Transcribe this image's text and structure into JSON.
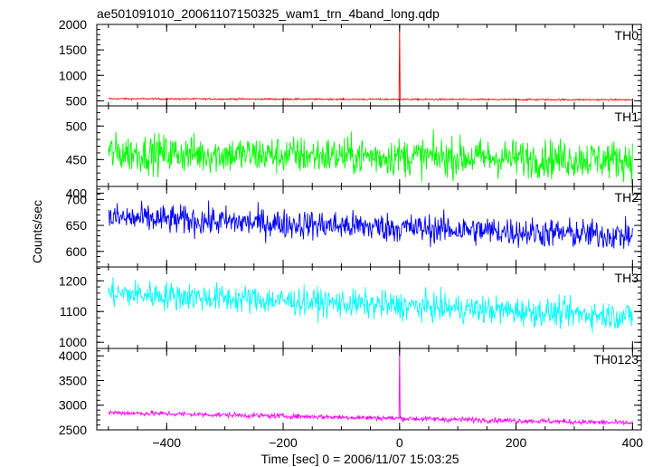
{
  "chart_data": {
    "type": "line",
    "title": "ae501091010_20061107150325_wam1_trn_4band_long.qdp",
    "xlabel": "Time [sec] 0 = 2006/11/07 15:03:25",
    "ylabel": "Counts/sec",
    "xlim": [
      -520,
      415
    ],
    "x_ticks": [
      -400,
      -200,
      0,
      200,
      400
    ],
    "x_tick_labels": [
      "−400",
      "−200",
      "0",
      "200",
      "400"
    ],
    "x_data_range": [
      -500,
      400
    ],
    "grid": false,
    "panels": [
      {
        "name": "TH0",
        "color": "#ff0000",
        "ylim": [
          400,
          2000
        ],
        "yticks": [
          500,
          1000,
          1500,
          2000
        ],
        "series_summary": {
          "start_mean": 540,
          "end_mean": 520,
          "noise_amplitude": 15,
          "spike": {
            "x": 0,
            "y": 2000
          }
        }
      },
      {
        "name": "TH1",
        "color": "#00ff00",
        "ylim": [
          410,
          530
        ],
        "yticks": [
          400,
          450,
          500
        ],
        "series_summary": {
          "start_mean": 460,
          "end_mean": 450,
          "noise_amplitude": 28
        }
      },
      {
        "name": "TH2",
        "color": "#0000ff",
        "ylim": [
          570,
          725
        ],
        "yticks": [
          600,
          650,
          700
        ],
        "series_summary": {
          "start_mean": 665,
          "end_mean": 630,
          "noise_amplitude": 28
        }
      },
      {
        "name": "TH3",
        "color": "#00ffff",
        "ylim": [
          980,
          1245
        ],
        "yticks": [
          1000,
          1100,
          1200
        ],
        "series_summary": {
          "start_mean": 1160,
          "end_mean": 1085,
          "noise_amplitude": 45
        }
      },
      {
        "name": "TH0123",
        "color": "#ff00ff",
        "ylim": [
          2500,
          4150
        ],
        "yticks": [
          2500,
          3000,
          3500,
          4000
        ],
        "series_summary": {
          "start_mean": 2850,
          "end_mean": 2640,
          "noise_amplitude": 50,
          "spike": {
            "x": 0,
            "y": 4150
          }
        }
      }
    ]
  }
}
